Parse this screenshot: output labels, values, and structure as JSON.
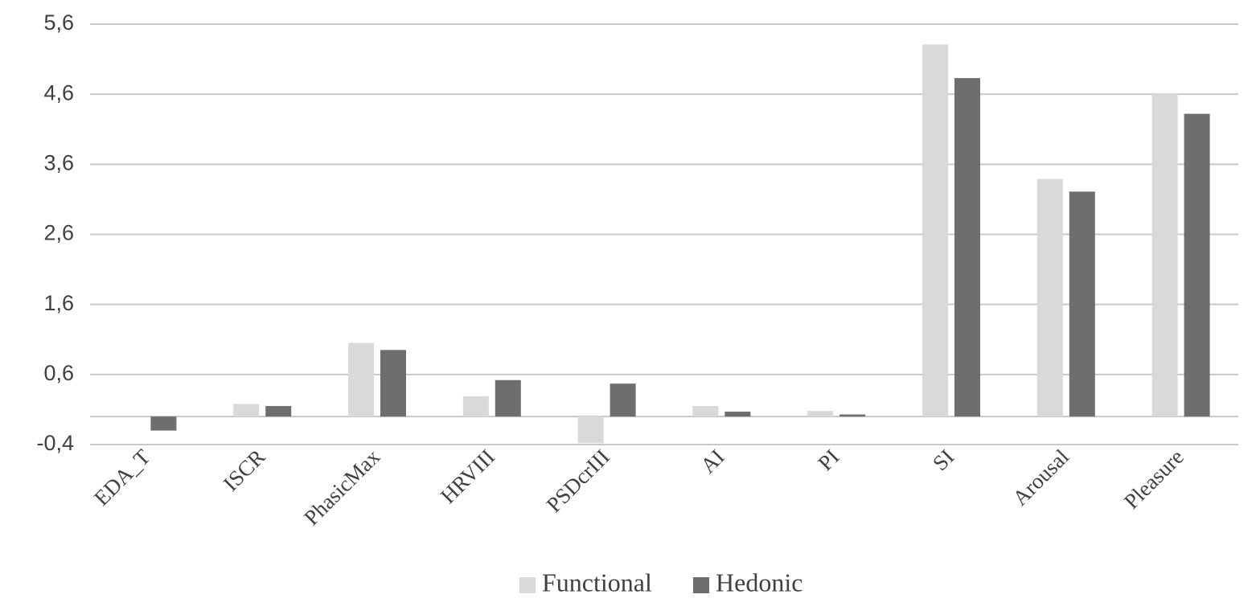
{
  "chart_data": {
    "type": "bar",
    "categories": [
      "EDA_T",
      "ISCR",
      "PhasicMax",
      "HRVIII",
      "PSDcrIII",
      "AI",
      "PI",
      "SI",
      "Arousal",
      "Pleasure"
    ],
    "series": [
      {
        "name": "Functional",
        "color": "#d9d9d9",
        "values": [
          0,
          0.18,
          1.05,
          0.29,
          -0.38,
          0.15,
          0.08,
          5.31,
          3.39,
          4.61
        ]
      },
      {
        "name": "Hedonic",
        "color": "#6e6e6e",
        "values": [
          -0.2,
          0.15,
          0.95,
          0.52,
          0.47,
          0.07,
          0.03,
          4.83,
          3.21,
          4.32
        ]
      }
    ],
    "ylim": [
      -0.4,
      5.6
    ],
    "yticks": [
      {
        "value": -0.4,
        "label": "-0,4"
      },
      {
        "value": 0.6,
        "label": "0,6"
      },
      {
        "value": 1.6,
        "label": "1,6"
      },
      {
        "value": 2.6,
        "label": "2,6"
      },
      {
        "value": 3.6,
        "label": "3,6"
      },
      {
        "value": 4.6,
        "label": "4,6"
      },
      {
        "value": 5.6,
        "label": "5,6"
      }
    ],
    "grid": true,
    "legend": "bottom"
  }
}
